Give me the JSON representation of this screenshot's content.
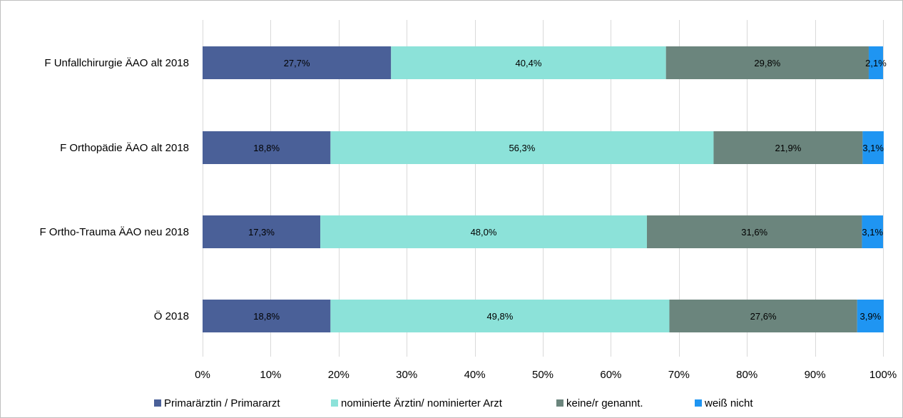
{
  "chart_data": {
    "type": "bar",
    "orientation": "horizontal",
    "stacked": true,
    "percent_stacked": true,
    "categories": [
      "F Unfallchirurgie ÄAO alt 2018",
      "F Orthopädie ÄAO alt 2018",
      "F Ortho-Trauma ÄAO neu 2018",
      "Ö 2018"
    ],
    "series": [
      {
        "name": "Primarärztin / Primararzt",
        "color": "#4a6098",
        "values": [
          27.7,
          18.8,
          17.3,
          18.8
        ],
        "labels": [
          "27,7%",
          "18,8%",
          "17,3%",
          "18,8%"
        ]
      },
      {
        "name": "nominierte Ärztin/ nominierter Arzt",
        "color": "#8ce2d9",
        "values": [
          40.4,
          56.3,
          48.0,
          49.8
        ],
        "labels": [
          "40,4%",
          "56,3%",
          "48,0%",
          "49,8%"
        ]
      },
      {
        "name": "keine/r genannt.",
        "color": "#6b857d",
        "values": [
          29.8,
          21.9,
          31.6,
          27.6
        ],
        "labels": [
          "29,8%",
          "21,9%",
          "31,6%",
          "27,6%"
        ]
      },
      {
        "name": "weiß nicht",
        "color": "#1f95f2",
        "values": [
          2.1,
          3.1,
          3.1,
          3.9
        ],
        "labels": [
          "2,1%",
          "3,1%",
          "3,1%",
          "3,9%"
        ]
      }
    ],
    "xlim": [
      0,
      100
    ],
    "x_ticks": [
      0,
      10,
      20,
      30,
      40,
      50,
      60,
      70,
      80,
      90,
      100
    ],
    "x_tick_labels": [
      "0%",
      "10%",
      "20%",
      "30%",
      "40%",
      "50%",
      "60%",
      "70%",
      "80%",
      "90%",
      "100%"
    ],
    "grid": true,
    "legend_position": "bottom"
  }
}
